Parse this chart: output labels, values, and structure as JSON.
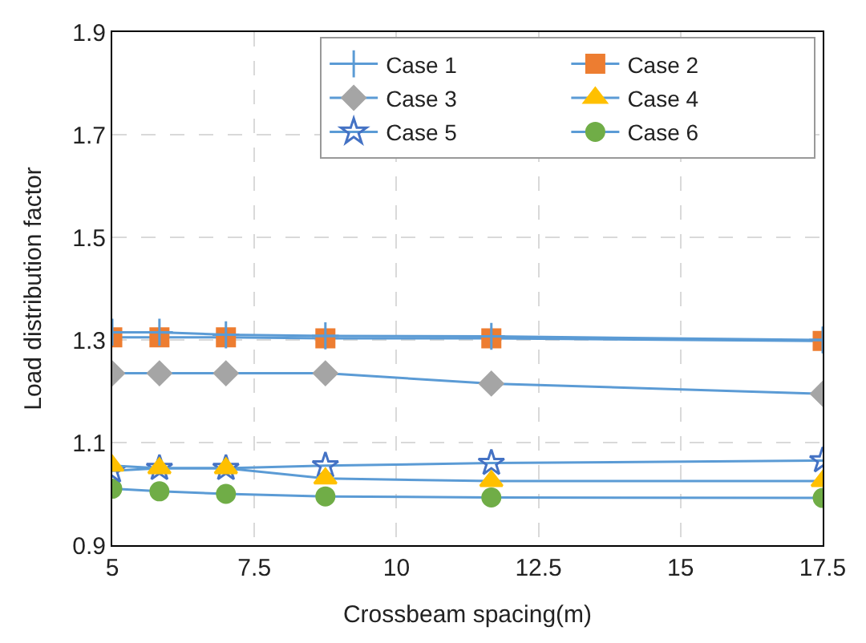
{
  "chart_data": {
    "type": "line",
    "xlabel": "Crossbeam spacing(m)",
    "ylabel": "Load distribution factor",
    "x": [
      5,
      5.83,
      7,
      8.75,
      11.67,
      17.5
    ],
    "xlim": [
      5,
      17.5
    ],
    "xticks": [
      5,
      {
        "value": 7.5,
        "label": "7.5"
      },
      10,
      {
        "value": 12.5,
        "label": "12.5"
      },
      15,
      {
        "value": 17.5,
        "label": "17.5"
      }
    ],
    "ylim": [
      0.9,
      1.9
    ],
    "yticks": [
      {
        "value": 0.9,
        "label": "0.9"
      },
      {
        "value": 1.1,
        "label": "1.1"
      },
      {
        "value": 1.3,
        "label": "1.3"
      },
      {
        "value": 1.5,
        "label": "1.5"
      },
      {
        "value": 1.7,
        "label": "1.7"
      },
      {
        "value": 1.9,
        "label": "1.9"
      }
    ],
    "grid": true,
    "legend": "top right",
    "line_style": "solid",
    "series": [
      {
        "name": "Case 1",
        "color": "#5b9bd5",
        "marker": "cross",
        "values": [
          1.315,
          1.315,
          1.31,
          1.308,
          1.307,
          1.3
        ]
      },
      {
        "name": "Case 2",
        "color": "#ed7d31",
        "marker": "square",
        "values": [
          1.305,
          1.305,
          1.305,
          1.303,
          1.303,
          1.298
        ]
      },
      {
        "name": "Case 3",
        "color": "#a5a5a5",
        "marker": "diamond",
        "values": [
          1.235,
          1.235,
          1.235,
          1.235,
          1.215,
          1.195
        ]
      },
      {
        "name": "Case 4",
        "color": "#ffc000",
        "marker": "triangle",
        "values": [
          1.055,
          1.05,
          1.05,
          1.03,
          1.025,
          1.025
        ]
      },
      {
        "name": "Case 5",
        "color": "#4472c4",
        "marker": "star",
        "values": [
          1.045,
          1.05,
          1.05,
          1.055,
          1.06,
          1.065
        ]
      },
      {
        "name": "Case 6",
        "color": "#70ad47",
        "marker": "circle",
        "values": [
          1.01,
          1.005,
          1.0,
          0.995,
          0.993,
          0.992
        ]
      }
    ]
  }
}
